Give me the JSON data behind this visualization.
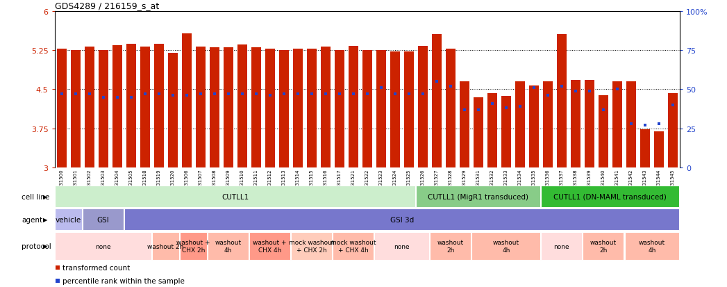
{
  "title": "GDS4289 / 216159_s_at",
  "xlabels": [
    "GSM731500",
    "GSM731501",
    "GSM731502",
    "GSM731503",
    "GSM731504",
    "GSM731505",
    "GSM731518",
    "GSM731519",
    "GSM731520",
    "GSM731506",
    "GSM731507",
    "GSM731508",
    "GSM731509",
    "GSM731510",
    "GSM731511",
    "GSM731512",
    "GSM731513",
    "GSM731514",
    "GSM731515",
    "GSM731516",
    "GSM731517",
    "GSM731521",
    "GSM731522",
    "GSM731523",
    "GSM731524",
    "GSM731525",
    "GSM731526",
    "GSM731527",
    "GSM731528",
    "GSM731529",
    "GSM731531",
    "GSM731532",
    "GSM731533",
    "GSM731534",
    "GSM731535",
    "GSM731536",
    "GSM731537",
    "GSM731538",
    "GSM731539",
    "GSM731540",
    "GSM731541",
    "GSM731542",
    "GSM731543",
    "GSM731544",
    "GSM731545"
  ],
  "bar_values": [
    5.28,
    5.25,
    5.31,
    5.25,
    5.34,
    5.37,
    5.31,
    5.37,
    5.19,
    5.57,
    5.31,
    5.3,
    5.3,
    5.35,
    5.3,
    5.27,
    5.25,
    5.28,
    5.28,
    5.32,
    5.25,
    5.33,
    5.25,
    5.25,
    5.22,
    5.22,
    5.33,
    5.55,
    5.27,
    4.65,
    4.35,
    4.42,
    4.37,
    4.65,
    4.57,
    4.65,
    5.55,
    4.68,
    4.68,
    4.38,
    4.65,
    4.65,
    3.73,
    3.7,
    4.43
  ],
  "percentile_values": [
    47,
    47,
    47,
    45,
    45,
    45,
    47,
    47,
    46,
    46,
    47,
    47,
    47,
    47,
    47,
    46,
    47,
    47,
    47,
    47,
    47,
    47,
    47,
    51,
    47,
    47,
    47,
    55,
    52,
    37,
    37,
    41,
    38,
    39,
    51,
    46,
    52,
    49,
    49,
    37,
    50,
    28,
    27,
    28,
    40
  ],
  "ymin": 3,
  "ymax": 6,
  "yticks": [
    3,
    3.75,
    4.5,
    5.25,
    6
  ],
  "ytick_labels": [
    "3",
    "3.75",
    "4.5",
    "5.25",
    "6"
  ],
  "right_yticks": [
    0,
    25,
    50,
    75,
    100
  ],
  "right_ytick_labels": [
    "0",
    "25",
    "50",
    "75",
    "100%"
  ],
  "bar_color": "#cc2200",
  "dot_color": "#2244cc",
  "bar_width": 0.7,
  "cell_line_groups": [
    {
      "label": "CUTLL1",
      "start": 0,
      "end": 26,
      "color": "#cceecc"
    },
    {
      "label": "CUTLL1 (MigR1 transduced)",
      "start": 26,
      "end": 35,
      "color": "#88cc88"
    },
    {
      "label": "CUTLL1 (DN-MAML transduced)",
      "start": 35,
      "end": 45,
      "color": "#33bb33"
    }
  ],
  "agent_groups": [
    {
      "label": "vehicle",
      "start": 0,
      "end": 2,
      "color": "#bbbbee"
    },
    {
      "label": "GSI",
      "start": 2,
      "end": 5,
      "color": "#9999cc"
    },
    {
      "label": "GSI 3d",
      "start": 5,
      "end": 45,
      "color": "#7777cc"
    }
  ],
  "protocol_groups": [
    {
      "label": "none",
      "start": 0,
      "end": 7,
      "color": "#ffdddd"
    },
    {
      "label": "washout 2h",
      "start": 7,
      "end": 9,
      "color": "#ffbbaa"
    },
    {
      "label": "washout +\nCHX 2h",
      "start": 9,
      "end": 11,
      "color": "#ff9988"
    },
    {
      "label": "washout\n4h",
      "start": 11,
      "end": 14,
      "color": "#ffbbaa"
    },
    {
      "label": "washout +\nCHX 4h",
      "start": 14,
      "end": 17,
      "color": "#ff9988"
    },
    {
      "label": "mock washout\n+ CHX 2h",
      "start": 17,
      "end": 20,
      "color": "#ffccbb"
    },
    {
      "label": "mock washout\n+ CHX 4h",
      "start": 20,
      "end": 23,
      "color": "#ffbbaa"
    },
    {
      "label": "none",
      "start": 23,
      "end": 27,
      "color": "#ffdddd"
    },
    {
      "label": "washout\n2h",
      "start": 27,
      "end": 30,
      "color": "#ffbbaa"
    },
    {
      "label": "washout\n4h",
      "start": 30,
      "end": 35,
      "color": "#ffbbaa"
    },
    {
      "label": "none",
      "start": 35,
      "end": 38,
      "color": "#ffdddd"
    },
    {
      "label": "washout\n2h",
      "start": 38,
      "end": 41,
      "color": "#ffbbaa"
    },
    {
      "label": "washout\n4h",
      "start": 41,
      "end": 45,
      "color": "#ffbbaa"
    }
  ]
}
